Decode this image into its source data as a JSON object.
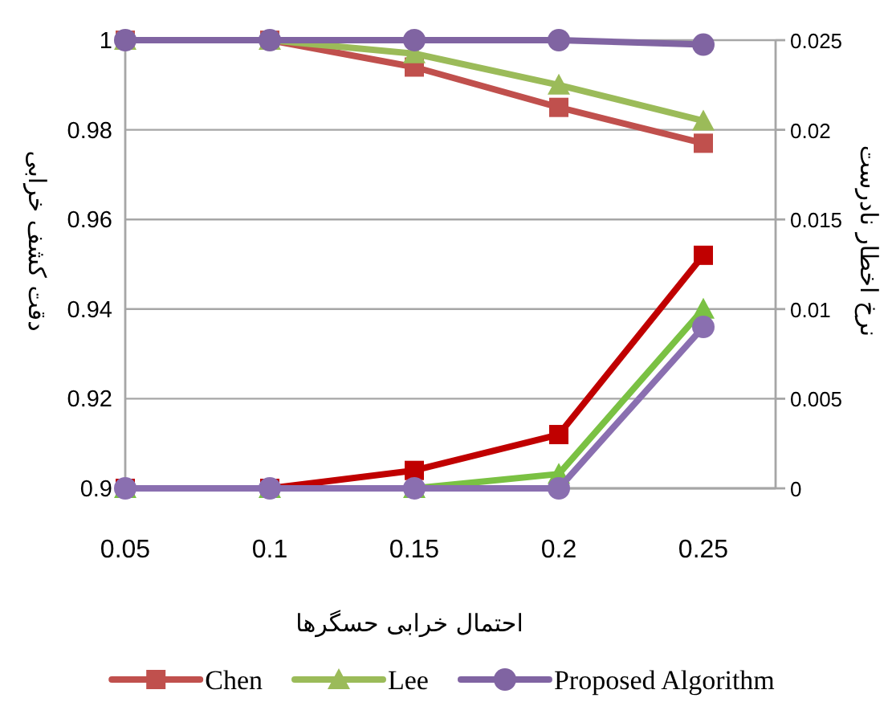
{
  "chart_data": {
    "type": "line",
    "xlabel": "احتمال خرابی حسگرها",
    "ylabel": "دقت کشف خرابی",
    "y2label": "نرخ اخطار نادرست",
    "x": [
      0.05,
      0.1,
      0.15,
      0.2,
      0.25
    ],
    "xlim": [
      0.05,
      0.275
    ],
    "xticks": [
      0.05,
      0.1,
      0.15,
      0.2,
      0.25
    ],
    "ylim": [
      0.9,
      1
    ],
    "yticks": [
      0.9,
      0.92,
      0.94,
      0.96,
      0.98,
      1
    ],
    "y2lim": [
      0,
      0.025
    ],
    "y2ticks": [
      0,
      0.005,
      0.01,
      0.015,
      0.02,
      0.025
    ],
    "grid": "y",
    "legend": "bottom",
    "line_style": "solid",
    "series": [
      {
        "name": "Chen",
        "color": "#c0504d",
        "marker": "square",
        "values": [
          1,
          1,
          0.994,
          0.985,
          0.977
        ]
      },
      {
        "name": "Lee",
        "color": "#9bbb59",
        "marker": "triangle",
        "values": [
          1,
          1,
          0.997,
          0.99,
          0.982
        ]
      },
      {
        "name": "Proposed Algorithm",
        "color": "#8064a2",
        "marker": "circle",
        "values": [
          1,
          1,
          1,
          1,
          0.999
        ]
      },
      {
        "color": "#c00000",
        "marker": "square",
        "axis": "y2",
        "values": [
          0,
          0,
          0.001,
          0.003,
          0.013
        ]
      },
      {
        "color": "#7ac143",
        "marker": "triangle",
        "axis": "y2",
        "values": [
          0,
          0,
          0,
          0.0008,
          0.01
        ]
      },
      {
        "color": "#8a6fb0",
        "marker": "circle",
        "axis": "y2",
        "values": [
          0,
          0,
          0,
          0,
          0.009
        ]
      }
    ]
  }
}
